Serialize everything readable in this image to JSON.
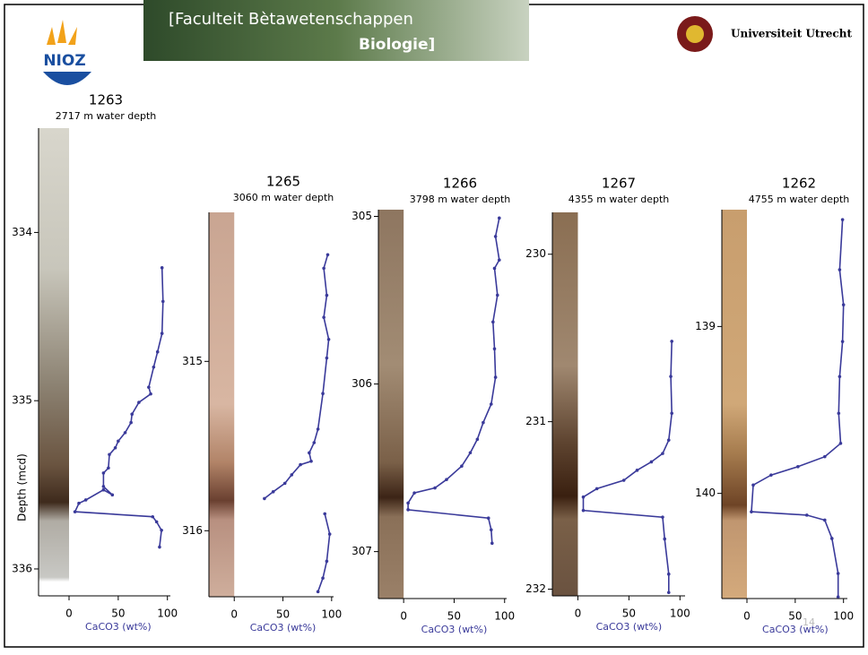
{
  "header": {
    "logo": "NIOZ",
    "banner_line1": "[Faculteit Bètawetenschappen",
    "banner_line2": "Biologie]",
    "university": "Universiteit Utrecht"
  },
  "page_number": "14",
  "chart_data": [
    {
      "type": "profile",
      "title": "1263",
      "subtitle": "2717 m water depth",
      "xlabel": "CaCO3 (wt%)",
      "ylabel": "Depth (mcd)",
      "color": "#3a3a9a",
      "xlim": [
        -31,
        103
      ],
      "xticks": [
        0,
        50,
        100
      ],
      "ylim": [
        333.38,
        336.16
      ],
      "yticks": [
        334,
        335,
        336
      ],
      "x": [
        94.5,
        95.5,
        94.5,
        90,
        86,
        81,
        83,
        71,
        64,
        63,
        57,
        50,
        47,
        41,
        40,
        35,
        35,
        44,
        35,
        17,
        10,
        6,
        85,
        89,
        94,
        92
      ],
      "y": [
        334.21,
        334.41,
        334.6,
        334.71,
        334.8,
        334.92,
        334.96,
        335.01,
        335.08,
        335.13,
        335.19,
        335.24,
        335.28,
        335.32,
        335.4,
        335.43,
        335.51,
        335.56,
        335.53,
        335.59,
        335.61,
        335.66,
        335.69,
        335.72,
        335.77,
        335.87
      ]
    },
    {
      "type": "profile",
      "title": "1265",
      "subtitle": "3060 m water depth",
      "xlabel": "CaCO3 (wt%)",
      "color": "#3a3a9a",
      "xlim": [
        -26,
        102
      ],
      "xticks": [
        0,
        50,
        100
      ],
      "ylim": [
        314.12,
        316.39
      ],
      "yticks": [
        315,
        316
      ],
      "x": [
        96,
        92,
        95,
        92,
        97,
        95,
        91,
        86,
        82,
        77,
        79,
        68,
        59,
        52,
        40,
        31,
        null,
        93,
        98,
        95,
        91,
        86
      ],
      "y": [
        314.37,
        314.45,
        314.61,
        314.74,
        314.87,
        314.98,
        315.19,
        315.4,
        315.48,
        315.54,
        315.59,
        315.61,
        315.67,
        315.72,
        315.77,
        315.81,
        null,
        315.9,
        316.02,
        316.18,
        316.28,
        316.36
      ]
    },
    {
      "type": "profile",
      "title": "1266",
      "subtitle": "3798 m water depth",
      "xlabel": "CaCO3 (wt%)",
      "color": "#3a3a9a",
      "xlim": [
        -25,
        102
      ],
      "xticks": [
        0,
        50,
        100
      ],
      "ylim": [
        304.96,
        307.28
      ],
      "yticks": [
        305,
        306,
        307
      ],
      "x": [
        94.7,
        91,
        94.7,
        90,
        92.9,
        88.5,
        90,
        91,
        86.7,
        78.8,
        73,
        66,
        57.5,
        42.5,
        31,
        10.6,
        4.4,
        4.4,
        84,
        86.7,
        87.6
      ],
      "y": [
        305.01,
        305.12,
        305.26,
        305.31,
        305.47,
        305.63,
        305.79,
        305.96,
        306.12,
        306.23,
        306.33,
        306.41,
        306.49,
        306.57,
        306.62,
        306.65,
        306.71,
        306.75,
        306.8,
        306.87,
        306.95
      ]
    },
    {
      "type": "profile",
      "title": "1267",
      "subtitle": "4355 m water depth",
      "xlabel": "CaCO3 (wt%)",
      "color": "#3a3a9a",
      "xlim": [
        -25,
        105
      ],
      "xticks": [
        0,
        50,
        100
      ],
      "ylim": [
        229.75,
        232.04
      ],
      "yticks": [
        230,
        231,
        232
      ],
      "x": [
        92,
        91,
        92,
        89,
        83,
        72,
        58,
        45,
        18.6,
        5.3,
        5.3,
        83,
        85,
        89,
        89
      ],
      "y": [
        230.52,
        230.73,
        230.95,
        231.11,
        231.19,
        231.24,
        231.29,
        231.35,
        231.4,
        231.45,
        231.53,
        231.57,
        231.7,
        231.91,
        232.02
      ]
    },
    {
      "type": "profile",
      "title": "1262",
      "subtitle": "4755 m water depth",
      "xlabel": "CaCO3 (wt%)",
      "color": "#3a3a9a",
      "xlim": [
        -26,
        104
      ],
      "xticks": [
        0,
        50,
        100
      ],
      "ylim": [
        138.3,
        140.63
      ],
      "yticks": [
        139,
        140
      ],
      "x": [
        99,
        96,
        100,
        99,
        96,
        95,
        97,
        80.6,
        52.8,
        25,
        6.5,
        4.6,
        62,
        80.6,
        88,
        94.4,
        94.4
      ],
      "y": [
        138.36,
        138.66,
        138.87,
        139.09,
        139.3,
        139.52,
        139.7,
        139.78,
        139.84,
        139.89,
        139.95,
        140.11,
        140.13,
        140.16,
        140.27,
        140.48,
        140.62
      ]
    }
  ]
}
